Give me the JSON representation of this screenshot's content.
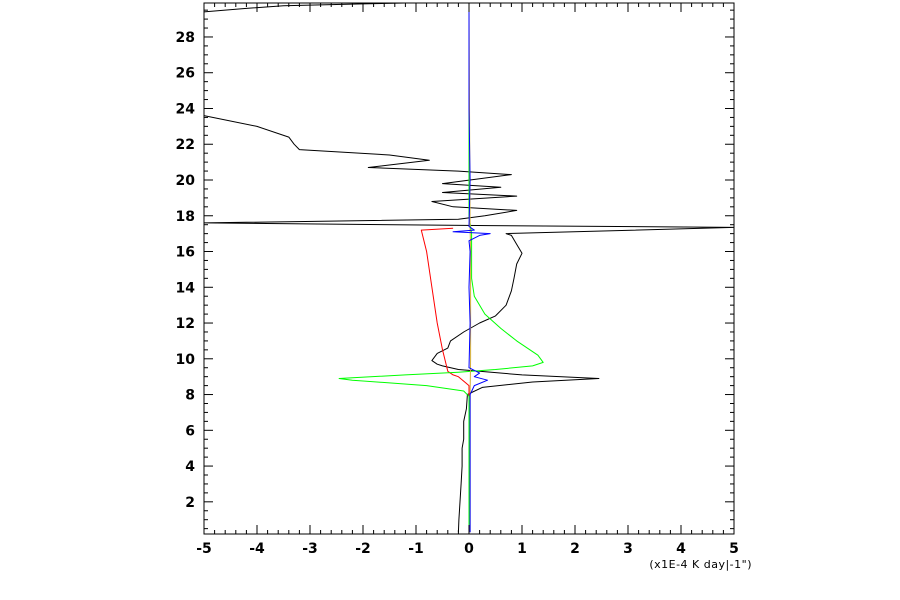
{
  "chart_data": {
    "type": "line",
    "title": "",
    "xlabel": "(x1E-4 K day|-1\")",
    "ylabel": "",
    "xlim": [
      -5,
      5
    ],
    "ylim": [
      0.2,
      29.9
    ],
    "grid": false,
    "legend": "none",
    "x_ticks": [
      -5,
      -4,
      -3,
      -2,
      -1,
      0,
      1,
      2,
      3,
      4,
      5
    ],
    "y_ticks": [
      2,
      4,
      6,
      8,
      10,
      12,
      14,
      16,
      18,
      20,
      22,
      24,
      26,
      28
    ],
    "series": [
      {
        "color": "#000000",
        "points": [
          [
            -0.2,
            0.3
          ],
          [
            -0.19,
            1.0
          ],
          [
            -0.17,
            2.0
          ],
          [
            -0.15,
            3.0
          ],
          [
            -0.13,
            4.0
          ],
          [
            -0.13,
            5.0
          ],
          [
            -0.1,
            5.5
          ],
          [
            -0.1,
            6.5
          ],
          [
            -0.05,
            7.2
          ],
          [
            -0.03,
            8.0
          ],
          [
            0.25,
            8.4
          ],
          [
            1.2,
            8.7
          ],
          [
            2.45,
            8.9
          ],
          [
            1.0,
            9.1
          ],
          [
            0.2,
            9.3
          ],
          [
            -0.2,
            9.4
          ],
          [
            -0.5,
            9.6
          ],
          [
            -0.6,
            9.7
          ],
          [
            -0.7,
            9.9
          ],
          [
            -0.6,
            10.3
          ],
          [
            -0.4,
            10.6
          ],
          [
            -0.35,
            11.0
          ],
          [
            -0.1,
            11.5
          ],
          [
            0.2,
            12.0
          ],
          [
            0.5,
            12.4
          ],
          [
            0.7,
            13.0
          ],
          [
            0.8,
            13.8
          ],
          [
            0.85,
            14.5
          ],
          [
            0.9,
            15.3
          ],
          [
            1.0,
            15.9
          ],
          [
            0.9,
            16.4
          ],
          [
            0.8,
            16.9
          ],
          [
            0.7,
            17.0
          ],
          [
            5.0,
            17.35
          ],
          [
            0.4,
            17.45
          ],
          [
            -5.0,
            17.6
          ],
          [
            -0.2,
            17.8
          ],
          [
            0.3,
            18.0
          ],
          [
            0.9,
            18.3
          ],
          [
            -0.3,
            18.5
          ],
          [
            -0.7,
            18.8
          ],
          [
            0.9,
            19.1
          ],
          [
            -0.5,
            19.3
          ],
          [
            0.6,
            19.6
          ],
          [
            -0.5,
            19.8
          ],
          [
            0.8,
            20.3
          ],
          [
            -0.2,
            20.5
          ],
          [
            -1.9,
            20.7
          ],
          [
            -0.75,
            21.1
          ],
          [
            -1.5,
            21.4
          ],
          [
            -3.2,
            21.7
          ],
          [
            -3.3,
            22.0
          ],
          [
            -3.4,
            22.4
          ],
          [
            -4.0,
            23.0
          ],
          [
            -5.0,
            23.6
          ]
        ]
      },
      {
        "color": "#000000",
        "points": [
          [
            -5.0,
            29.4
          ],
          [
            -4.2,
            29.6
          ],
          [
            -3.5,
            29.75
          ],
          [
            -2.0,
            29.85
          ],
          [
            -1.2,
            29.9
          ]
        ]
      },
      {
        "color": "#ff0000",
        "points": [
          [
            0.0,
            0.3
          ],
          [
            0.0,
            8.5
          ],
          [
            -0.2,
            9.0
          ],
          [
            -0.3,
            9.1
          ],
          [
            -0.4,
            9.3
          ],
          [
            -0.5,
            10.5
          ],
          [
            -0.6,
            12.0
          ],
          [
            -0.7,
            14.0
          ],
          [
            -0.8,
            16.0
          ],
          [
            -0.9,
            17.2
          ],
          [
            -0.3,
            17.3
          ]
        ]
      },
      {
        "color": "#00ff00",
        "points": [
          [
            0.0,
            0.3
          ],
          [
            0.0,
            7.9
          ],
          [
            -0.1,
            8.2
          ],
          [
            -0.8,
            8.5
          ],
          [
            -2.2,
            8.8
          ],
          [
            -2.45,
            8.9
          ],
          [
            -1.2,
            9.1
          ],
          [
            -0.2,
            9.25
          ],
          [
            0.5,
            9.4
          ],
          [
            1.2,
            9.6
          ],
          [
            1.4,
            9.8
          ],
          [
            1.3,
            10.2
          ],
          [
            0.9,
            11.0
          ],
          [
            0.6,
            11.7
          ],
          [
            0.3,
            12.5
          ],
          [
            0.1,
            13.5
          ],
          [
            0.05,
            14.5
          ],
          [
            0.05,
            16.0
          ],
          [
            0.05,
            17.0
          ],
          [
            0.0,
            18.0
          ],
          [
            0.0,
            29.9
          ]
        ]
      },
      {
        "color": "#d4af37",
        "points": [
          [
            0.02,
            0.3
          ],
          [
            0.02,
            8.0
          ],
          [
            0.03,
            10.0
          ],
          [
            0.03,
            16.0
          ],
          [
            0.02,
            17.3
          ],
          [
            0.0,
            29.9
          ]
        ]
      },
      {
        "color": "#0000ff",
        "points": [
          [
            0.02,
            0.3
          ],
          [
            0.02,
            8.0
          ],
          [
            0.1,
            8.5
          ],
          [
            0.35,
            8.8
          ],
          [
            0.1,
            9.0
          ],
          [
            0.2,
            9.2
          ],
          [
            0.0,
            9.5
          ],
          [
            0.02,
            12.0
          ],
          [
            0.0,
            14.0
          ],
          [
            0.02,
            16.0
          ],
          [
            0.0,
            16.6
          ],
          [
            0.2,
            16.9
          ],
          [
            0.4,
            17.0
          ],
          [
            -0.3,
            17.1
          ],
          [
            0.1,
            17.2
          ],
          [
            0.0,
            17.4
          ],
          [
            0.02,
            20.0
          ],
          [
            0.0,
            24.0
          ],
          [
            0.0,
            29.9
          ]
        ]
      }
    ]
  }
}
